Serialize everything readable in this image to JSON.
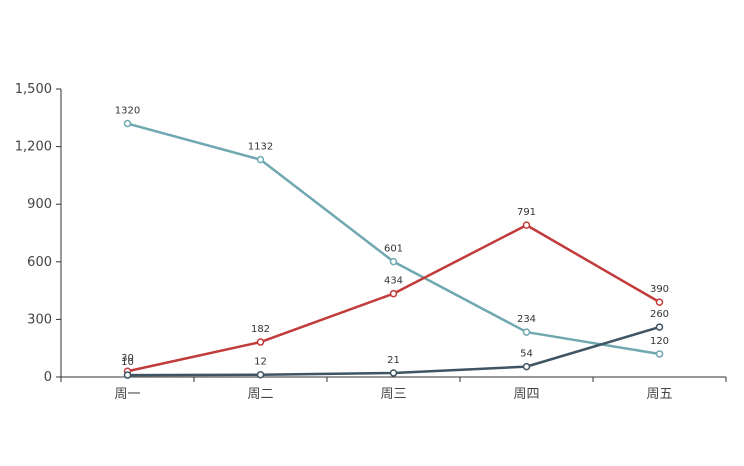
{
  "chart_data": {
    "type": "line",
    "categories": [
      "周一",
      "周二",
      "周三",
      "周四",
      "周五"
    ],
    "series": [
      {
        "color": "#6fa8b0",
        "values": [
          1320,
          1132,
          601,
          234,
          120
        ]
      },
      {
        "color": "#c23b3b",
        "values": [
          30,
          182,
          434,
          791,
          390
        ]
      },
      {
        "color": "#3f5563",
        "values": [
          10,
          12,
          21,
          54,
          260
        ]
      }
    ],
    "ylim": [
      0,
      1500
    ],
    "yticks": [
      0,
      300,
      600,
      900,
      1200,
      1500
    ],
    "ytick_labels": [
      "0",
      "300",
      "600",
      "900",
      "1,200",
      "1,500"
    ],
    "grid": false,
    "data_labels": true,
    "title": "",
    "xlabel": "",
    "ylabel": ""
  }
}
